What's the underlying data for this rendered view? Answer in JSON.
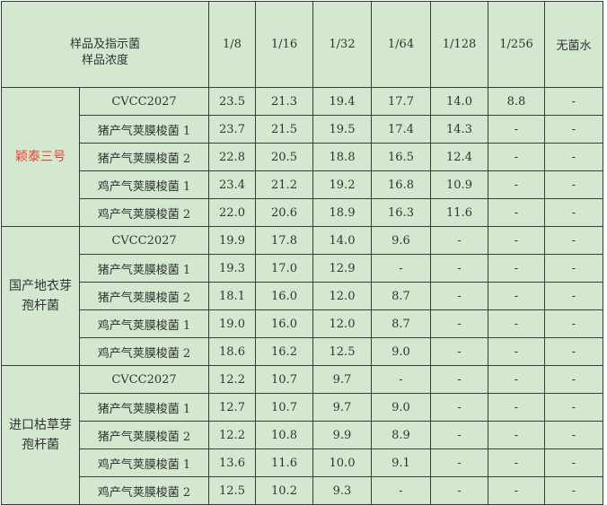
{
  "header": {
    "corner_line1": "样品及指示菌",
    "corner_line2": "样品浓度",
    "concentrations": [
      "1/8",
      "1/16",
      "1/32",
      "1/64",
      "1/128",
      "1/256",
      "无菌水"
    ]
  },
  "groups": [
    {
      "name_line1": "颖泰三号",
      "name_line2": "",
      "highlight_color": "#e8433a",
      "rows": [
        {
          "strain": "CVCC2027",
          "values": [
            "23.5",
            "21.3",
            "19.4",
            "17.7",
            "14.0",
            "8.8",
            "-"
          ]
        },
        {
          "strain": "猪产气荚膜梭菌 1",
          "values": [
            "23.7",
            "21.5",
            "19.5",
            "17.4",
            "14.3",
            "-",
            "-"
          ]
        },
        {
          "strain": "猪产气荚膜梭菌 2",
          "values": [
            "22.8",
            "20.5",
            "18.8",
            "16.5",
            "12.4",
            "-",
            "-"
          ]
        },
        {
          "strain": "鸡产气荚膜梭菌 1",
          "values": [
            "23.4",
            "21.2",
            "19.2",
            "16.8",
            "10.9",
            "-",
            "-"
          ]
        },
        {
          "strain": "鸡产气荚膜梭菌 2",
          "values": [
            "22.0",
            "20.6",
            "18.9",
            "16.3",
            "11.6",
            "-",
            "-"
          ]
        }
      ]
    },
    {
      "name_line1": "国产地衣芽",
      "name_line2": "孢杆菌",
      "rows": [
        {
          "strain": "CVCC2027",
          "values": [
            "19.9",
            "17.8",
            "14.0",
            "9.6",
            "-",
            "-",
            "-"
          ]
        },
        {
          "strain": "猪产气荚膜梭菌 1",
          "values": [
            "19.3",
            "17.0",
            "12.9",
            "-",
            "-",
            "-",
            "-"
          ]
        },
        {
          "strain": "猪产气荚膜梭菌 2",
          "values": [
            "18.1",
            "16.0",
            "12.0",
            "8.7",
            "-",
            "-",
            "-"
          ]
        },
        {
          "strain": "鸡产气荚膜梭菌 1",
          "values": [
            "19.0",
            "16.0",
            "12.0",
            "8.7",
            "-",
            "-",
            "-"
          ]
        },
        {
          "strain": "鸡产气荚膜梭菌 2",
          "values": [
            "18.6",
            "16.2",
            "12.5",
            "9.0",
            "-",
            "-",
            "-"
          ]
        }
      ]
    },
    {
      "name_line1": "进口枯草芽",
      "name_line2": "孢杆菌",
      "rows": [
        {
          "strain": "CVCC2027",
          "values": [
            "12.2",
            "10.7",
            "9.7",
            "-",
            "-",
            "-",
            "-"
          ]
        },
        {
          "strain": "猪产气荚膜梭菌 1",
          "values": [
            "12.7",
            "10.7",
            "9.7",
            "9.0",
            "-",
            "-",
            "-"
          ]
        },
        {
          "strain": "猪产气荚膜梭菌 2",
          "values": [
            "12.2",
            "10.8",
            "9.9",
            "8.9",
            "-",
            "-",
            "-"
          ]
        },
        {
          "strain": "鸡产气荚膜梭菌 1",
          "values": [
            "13.6",
            "11.6",
            "10.0",
            "9.1",
            "-",
            "-",
            "-"
          ]
        },
        {
          "strain": "鸡产气荚膜梭菌 2",
          "values": [
            "12.5",
            "10.2",
            "9.3",
            "-",
            "-",
            "-",
            "-"
          ]
        }
      ]
    }
  ],
  "colors": {
    "background": "#d3e8cf",
    "border": "#3a3a3a"
  }
}
